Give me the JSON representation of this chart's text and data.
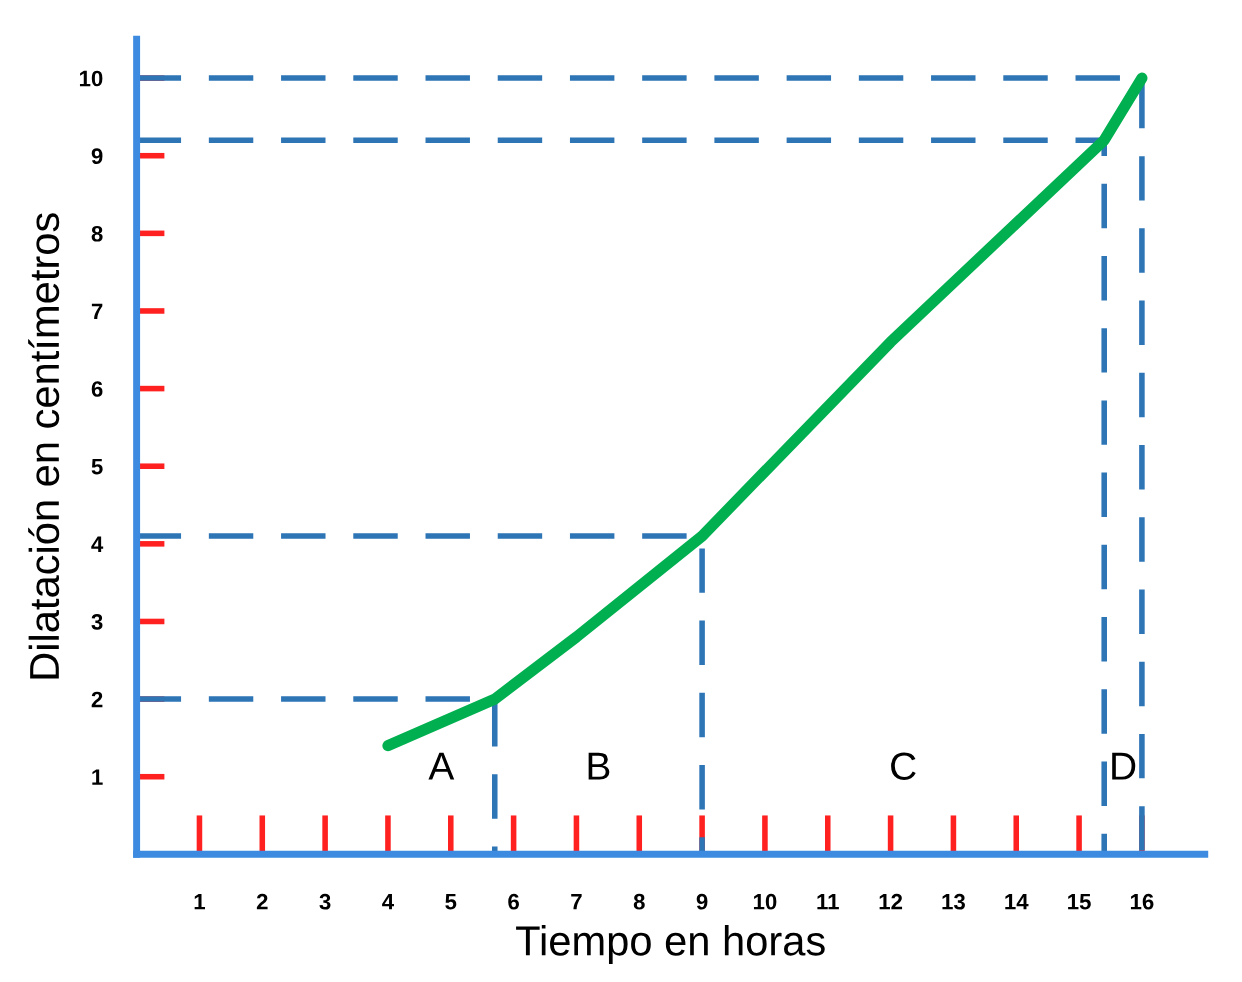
{
  "chart_data": {
    "type": "line",
    "xlabel": "Tiempo en horas",
    "ylabel": "Dilatación en centímetros",
    "xlim": [
      0,
      17
    ],
    "ylim": [
      0,
      10.5
    ],
    "xticks": [
      1,
      2,
      3,
      4,
      5,
      6,
      7,
      8,
      9,
      10,
      11,
      12,
      13,
      14,
      15,
      16
    ],
    "yticks": [
      1,
      2,
      3,
      4,
      5,
      6,
      7,
      8,
      9,
      10
    ],
    "grid": false,
    "legend": false,
    "marker": "none",
    "series": [
      {
        "color": "#00b050",
        "x": [
          4,
          5.7,
          7,
          9,
          12,
          15.4,
          16
        ],
        "values": [
          1.4,
          2,
          2.8,
          4.1,
          6.6,
          9.2,
          10
        ]
      },
      {
        "color": "#2e75b6",
        "line_style": "dashed",
        "x": [
          0,
          5.7,
          5.7
        ],
        "values": [
          2,
          2,
          0
        ]
      },
      {
        "color": "#2e75b6",
        "line_style": "dashed",
        "x": [
          0,
          9,
          9
        ],
        "values": [
          4.1,
          4.1,
          0
        ]
      },
      {
        "color": "#2e75b6",
        "line_style": "dashed",
        "x": [
          0,
          15.4,
          15.4
        ],
        "values": [
          9.2,
          9.2,
          0
        ]
      },
      {
        "color": "#2e75b6",
        "line_style": "dashed",
        "x": [
          0,
          16,
          16
        ],
        "values": [
          10,
          10,
          0
        ]
      }
    ],
    "annotations": [
      "A",
      "B",
      "C",
      "D"
    ]
  }
}
